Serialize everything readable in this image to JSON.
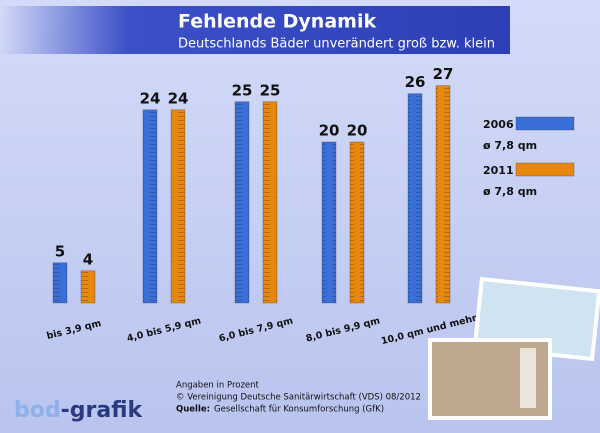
{
  "chart_data": {
    "type": "bar",
    "title": "Fehlende Dynamik",
    "subtitle": "Deutschlands Bäder unverändert groß bzw. klein",
    "categories": [
      "bis 3,9 qm",
      "4,0 bis 5,9 qm",
      "6,0 bis 7,9 qm",
      "8,0 bis 9,9 qm",
      "10,0 qm und mehr"
    ],
    "series": [
      {
        "name": "2006",
        "note": "ø 7,8 qm",
        "color": "#3a6fd8",
        "values": [
          5,
          24,
          25,
          20,
          26
        ]
      },
      {
        "name": "2011",
        "note": "ø 7,8 qm",
        "color": "#e8870e",
        "values": [
          4,
          24,
          25,
          20,
          27
        ]
      }
    ],
    "footnotes": [
      "Angaben in Prozent",
      "© Vereinigung Deutsche Sanitärwirtschaft (VDS)  08/2012"
    ],
    "source_label": "Quelle:",
    "source": "Gesellschaft für Konsumforschung (GfK)",
    "logo": {
      "part1": "bod",
      "part2": "-grafik"
    }
  }
}
